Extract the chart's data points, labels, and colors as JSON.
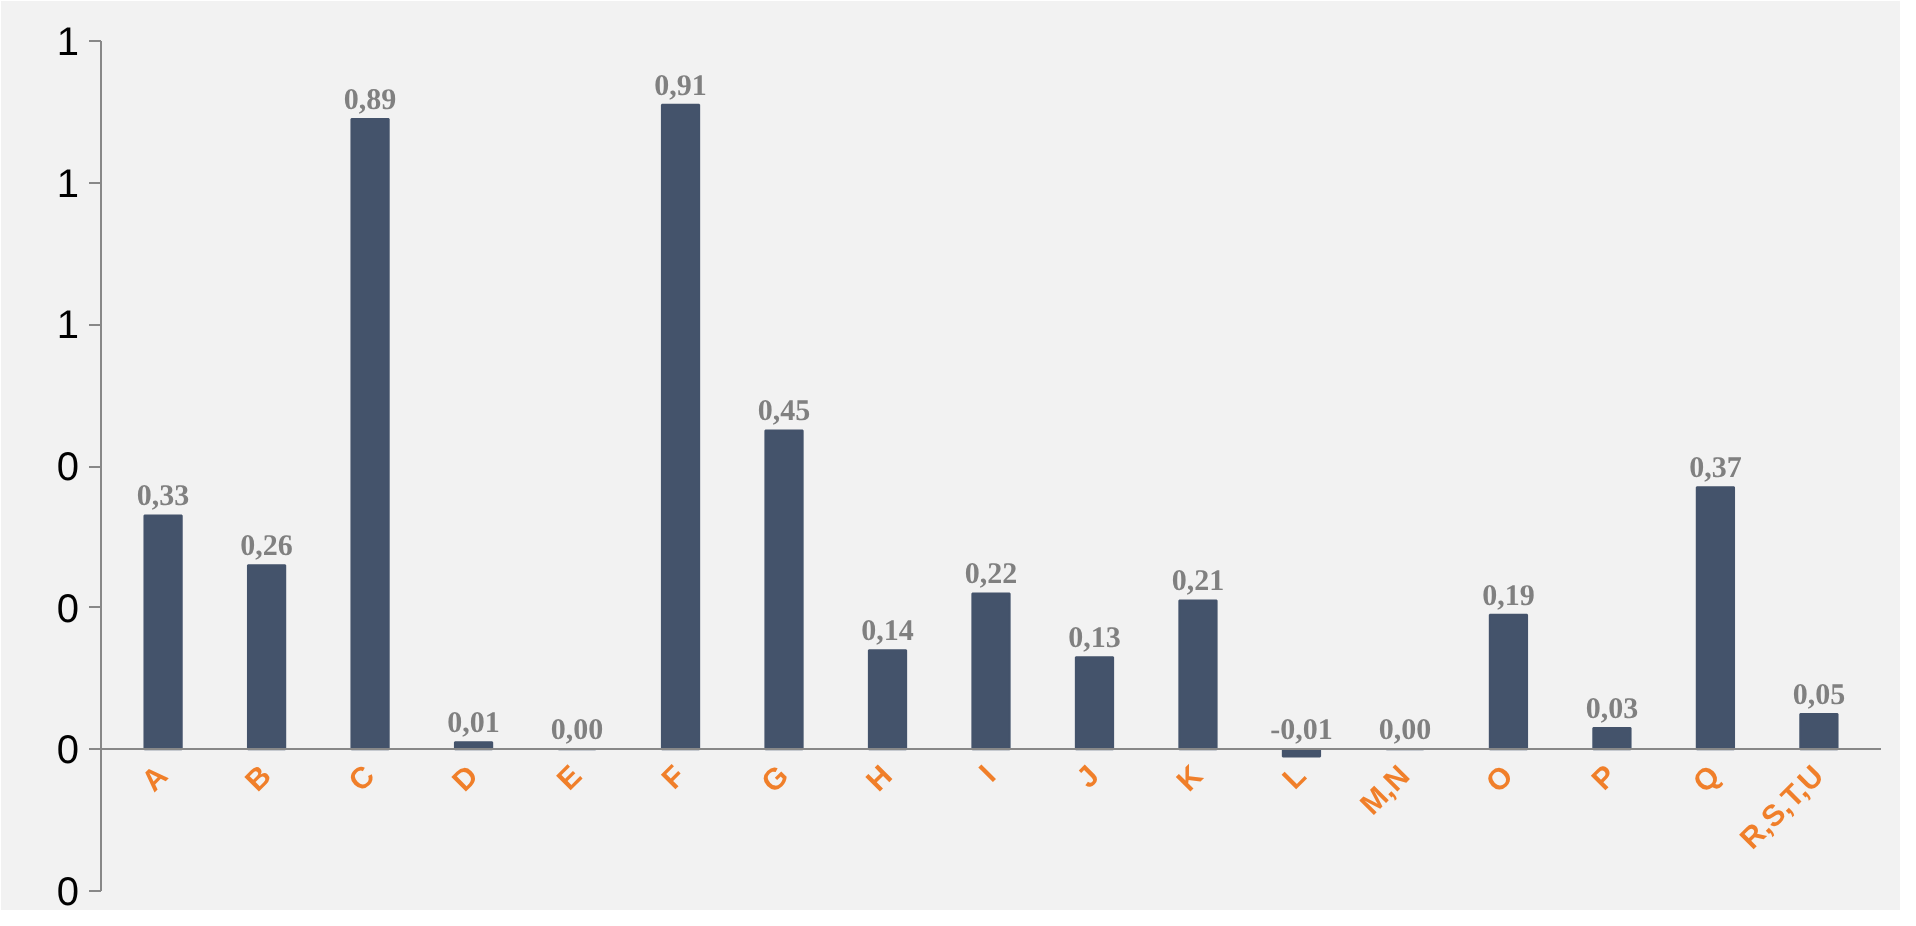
{
  "chart_data": {
    "type": "bar",
    "categories": [
      "A",
      "B",
      "C",
      "D",
      "E",
      "F",
      "G",
      "H",
      "I",
      "J",
      "K",
      "L",
      "M,N",
      "O",
      "P",
      "Q",
      "R,S,T,U"
    ],
    "values": [
      0.33,
      0.26,
      0.89,
      0.01,
      0.0,
      0.91,
      0.45,
      0.14,
      0.22,
      0.13,
      0.21,
      -0.01,
      0.0,
      0.19,
      0.03,
      0.37,
      0.05
    ],
    "value_labels": [
      "0,33",
      "0,26",
      "0,89",
      "0,01",
      "0,00",
      "0,91",
      "0,45",
      "0,14",
      "0,22",
      "0,13",
      "0,21",
      "-0,01",
      "0,00",
      "0,19",
      "0,03",
      "0,37",
      "0,05"
    ],
    "color": "#44536b",
    "ylim": [
      -0.2,
      1.0
    ],
    "yticks": [
      {
        "value": -0.2,
        "label": "0"
      },
      {
        "value": 0,
        "label": "0"
      },
      {
        "value": 0.2,
        "label": "0"
      },
      {
        "value": 0.4,
        "label": "0"
      },
      {
        "value": 0.6,
        "label": "1"
      },
      {
        "value": 0.8,
        "label": "1"
      },
      {
        "value": 1.0,
        "label": "1"
      }
    ],
    "grid": false
  }
}
